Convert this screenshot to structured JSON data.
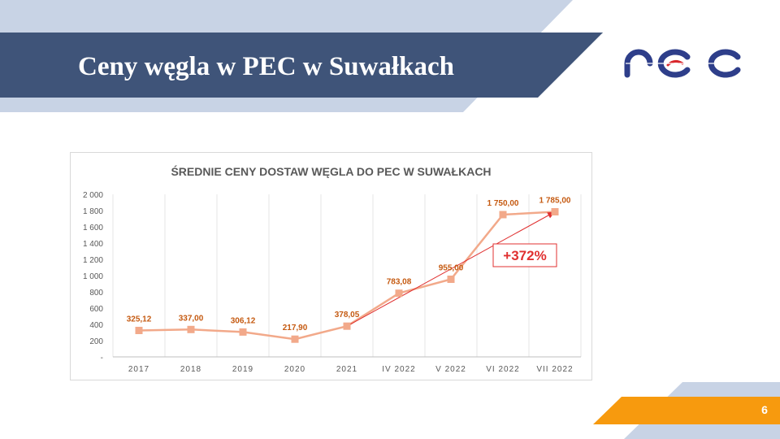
{
  "slide": {
    "title": "Ceny węgla w PEC w Suwałkach",
    "page_number": "6"
  },
  "colors": {
    "header_band": "#3f5479",
    "header_band_dark": "#1f2d4a",
    "light_band": "#c8d3e5",
    "accent_orange": "#f79a0e",
    "series": "#f2a98a",
    "data_label": "#c55a11",
    "arrow": "#e03030",
    "logo_blue": "#2e3e8a",
    "logo_red": "#d9262b"
  },
  "chart_data": {
    "type": "line",
    "title": "ŚREDNIE CENY DOSTAW WĘGLA DO PEC W SUWAŁKACH",
    "categories": [
      "2017",
      "2018",
      "2019",
      "2020",
      "2021",
      "IV 2022",
      "V 2022",
      "VI 2022",
      "VII 2022"
    ],
    "series": [
      {
        "values": [
          325.12,
          337.0,
          306.12,
          217.9,
          378.05,
          783.08,
          955.0,
          1750.0,
          1785.0
        ],
        "labels": [
          "325,12",
          "337,00",
          "306,12",
          "217,90",
          "378,05",
          "783,08",
          "955,00",
          "1 750,00",
          "1 785,00"
        ]
      }
    ],
    "y_ticks": [
      "-",
      "200",
      "400",
      "600",
      "800",
      "1 000",
      "1 200",
      "1 400",
      "1 600",
      "1 800",
      "2 000"
    ],
    "ylim": [
      0,
      2000
    ],
    "grid": "vertical",
    "annotation": {
      "text": "+372%",
      "from_category": "2021",
      "from_value": 378.05,
      "to_category": "VII 2022",
      "to_value": 1785.0
    }
  }
}
